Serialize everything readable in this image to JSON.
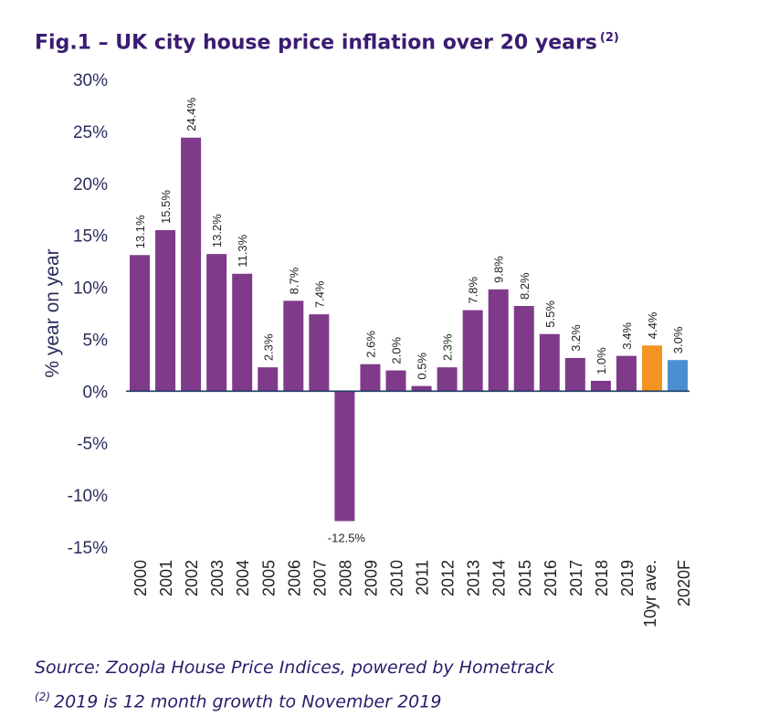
{
  "title": {
    "text": "Fig.1 – UK city house price inflation over 20 years",
    "superscript": "(2)"
  },
  "footer": {
    "source": "Source: Zoopla House Price Indices, powered by Hometrack",
    "note_mark": "(2)",
    "note": "2019 is 12 month growth to November 2019"
  },
  "colors": {
    "bar": "#7f3a8a",
    "ten_yr_average": "#f39322",
    "forecast": "#4a8fd1",
    "axis_text": "#2a2d5c",
    "zero_line": "#1f3e66"
  },
  "chart_data": {
    "type": "bar",
    "title": "Fig.1 – UK city house price inflation over 20 years",
    "xlabel": "",
    "ylabel": "% year on year",
    "ylim": [
      -15,
      30
    ],
    "yticks": [
      "30%",
      "25%",
      "20%",
      "15%",
      "10%",
      "5%",
      "0%",
      "-5%",
      "-10%",
      "-15%"
    ],
    "ytick_values": [
      30,
      25,
      20,
      15,
      10,
      5,
      0,
      -5,
      -10,
      -15
    ],
    "grid": false,
    "legend": "none",
    "categories": [
      "2000",
      "2001",
      "2002",
      "2003",
      "2004",
      "2005",
      "2006",
      "2007",
      "2008",
      "2009",
      "2010",
      "2011",
      "2012",
      "2013",
      "2014",
      "2015",
      "2016",
      "2017",
      "2018",
      "2019",
      "10yr ave.",
      "2020F"
    ],
    "values": [
      13.1,
      15.5,
      24.4,
      13.2,
      11.3,
      2.3,
      8.7,
      7.4,
      -12.5,
      2.6,
      2.0,
      0.5,
      2.3,
      7.8,
      9.8,
      8.2,
      5.5,
      3.2,
      1.0,
      3.4,
      4.4,
      3.0
    ],
    "data_labels": [
      "13.1%",
      "15.5%",
      "24.4%",
      "13.2%",
      "11.3%",
      "2.3%",
      "8.7%",
      "7.4%",
      "-12.5%",
      "2.6%",
      "2.0%",
      "0.5%",
      "2.3%",
      "7.8%",
      "9.8%",
      "8.2%",
      "5.5%",
      "3.2%",
      "1.0%",
      "3.4%",
      "4.4%",
      "3.0%"
    ],
    "bar_colors": [
      "#7f3a8a",
      "#7f3a8a",
      "#7f3a8a",
      "#7f3a8a",
      "#7f3a8a",
      "#7f3a8a",
      "#7f3a8a",
      "#7f3a8a",
      "#7f3a8a",
      "#7f3a8a",
      "#7f3a8a",
      "#7f3a8a",
      "#7f3a8a",
      "#7f3a8a",
      "#7f3a8a",
      "#7f3a8a",
      "#7f3a8a",
      "#7f3a8a",
      "#7f3a8a",
      "#7f3a8a",
      "#f39322",
      "#4a8fd1"
    ]
  }
}
